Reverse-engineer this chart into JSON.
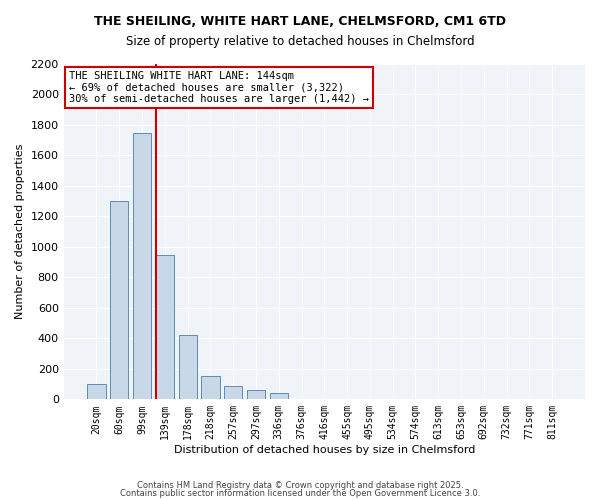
{
  "title1": "THE SHEILING, WHITE HART LANE, CHELMSFORD, CM1 6TD",
  "title2": "Size of property relative to detached houses in Chelmsford",
  "xlabel": "Distribution of detached houses by size in Chelmsford",
  "ylabel": "Number of detached properties",
  "bar_labels": [
    "20sqm",
    "60sqm",
    "99sqm",
    "139sqm",
    "178sqm",
    "218sqm",
    "257sqm",
    "297sqm",
    "336sqm",
    "376sqm",
    "416sqm",
    "455sqm",
    "495sqm",
    "534sqm",
    "574sqm",
    "613sqm",
    "653sqm",
    "692sqm",
    "732sqm",
    "771sqm",
    "811sqm"
  ],
  "bar_values": [
    100,
    1300,
    1750,
    950,
    425,
    150,
    90,
    60,
    40,
    0,
    0,
    0,
    0,
    0,
    0,
    0,
    0,
    0,
    0,
    0,
    0
  ],
  "bar_color": "#c8d8e8",
  "bar_edgecolor": "#5b8db8",
  "vline_x_index": 3,
  "vline_color": "#cc0000",
  "ylim": [
    0,
    2200
  ],
  "yticks": [
    0,
    200,
    400,
    600,
    800,
    1000,
    1200,
    1400,
    1600,
    1800,
    2000,
    2200
  ],
  "annotation_line1": "THE SHEILING WHITE HART LANE: 144sqm",
  "annotation_line2": "← 69% of detached houses are smaller (3,322)",
  "annotation_line3": "30% of semi-detached houses are larger (1,442) →",
  "annotation_box_color": "#cc0000",
  "background_color": "#f0f4f8",
  "footer1": "Contains HM Land Registry data © Crown copyright and database right 2025.",
  "footer2": "Contains public sector information licensed under the Open Government Licence 3.0."
}
